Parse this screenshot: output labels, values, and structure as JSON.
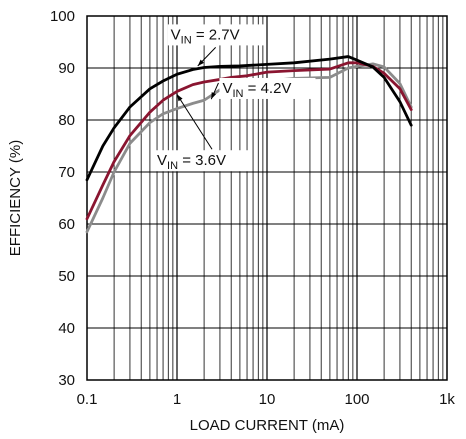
{
  "chart_data": {
    "type": "line",
    "xscale": "log",
    "xlim": [
      0.1,
      1000
    ],
    "ylim": [
      30,
      100
    ],
    "xlabel": "LOAD CURRENT (mA)",
    "ylabel": "EFFICIENCY (%)",
    "x_ticks": [
      "0.1",
      "1",
      "10",
      "100",
      "1k"
    ],
    "y_ticks": [
      "30",
      "40",
      "50",
      "60",
      "70",
      "80",
      "90",
      "100"
    ],
    "grid": true,
    "series": [
      {
        "name": "VIN = 2.7V",
        "label_main": "V",
        "label_sub": "IN",
        "label_rest": " = 2.7V",
        "color": "#000000",
        "points": [
          [
            0.1,
            68.5
          ],
          [
            0.15,
            75
          ],
          [
            0.2,
            78.5
          ],
          [
            0.3,
            82.5
          ],
          [
            0.5,
            86
          ],
          [
            0.7,
            87.5
          ],
          [
            1,
            88.8
          ],
          [
            1.5,
            89.7
          ],
          [
            2,
            90.1
          ],
          [
            3,
            90.3
          ],
          [
            5,
            90.4
          ],
          [
            10,
            90.7
          ],
          [
            20,
            91
          ],
          [
            50,
            91.7
          ],
          [
            80,
            92.2
          ],
          [
            100,
            91.5
          ],
          [
            150,
            90.2
          ],
          [
            200,
            88.2
          ],
          [
            300,
            83.5
          ],
          [
            400,
            79
          ]
        ]
      },
      {
        "name": "VIN = 3.6V",
        "label_main": "V",
        "label_sub": "IN",
        "label_rest": " = 3.6V",
        "color": "#8a1530",
        "points": [
          [
            0.1,
            61
          ],
          [
            0.15,
            67.5
          ],
          [
            0.2,
            72
          ],
          [
            0.3,
            77
          ],
          [
            0.5,
            81.5
          ],
          [
            0.7,
            83.8
          ],
          [
            1,
            85.5
          ],
          [
            1.5,
            86.8
          ],
          [
            2,
            87.3
          ],
          [
            3,
            87.8
          ],
          [
            4,
            88.2
          ],
          [
            6,
            88.5
          ],
          [
            10,
            89.2
          ],
          [
            20,
            89.5
          ],
          [
            50,
            89.8
          ],
          [
            80,
            91
          ],
          [
            100,
            91
          ],
          [
            150,
            90.3
          ],
          [
            200,
            89
          ],
          [
            300,
            86
          ],
          [
            400,
            82
          ]
        ]
      },
      {
        "name": "VIN = 4.2V",
        "label_main": "V",
        "label_sub": "IN",
        "label_rest": " = 4.2V",
        "color": "#8c8c8c",
        "points": [
          [
            0.1,
            58.5
          ],
          [
            0.15,
            65
          ],
          [
            0.2,
            70
          ],
          [
            0.3,
            75.5
          ],
          [
            0.5,
            79.5
          ],
          [
            0.7,
            81.2
          ],
          [
            1,
            82.2
          ],
          [
            1.5,
            83.2
          ],
          [
            2,
            83.8
          ],
          [
            3,
            85.8
          ],
          [
            4,
            87
          ],
          [
            6,
            87.3
          ],
          [
            10,
            87.5
          ],
          [
            20,
            88
          ],
          [
            50,
            88.2
          ],
          [
            80,
            90
          ],
          [
            100,
            90.3
          ],
          [
            150,
            90.8
          ],
          [
            200,
            90.2
          ],
          [
            300,
            87
          ],
          [
            400,
            82.5
          ]
        ]
      }
    ],
    "annotations": [
      {
        "series": 0,
        "text_x": 0.85,
        "text_y": 95.5
      },
      {
        "series": 2,
        "text_x": 3.2,
        "text_y": 85.2
      },
      {
        "series": 1,
        "text_x": 0.6,
        "text_y": 71.3
      }
    ]
  }
}
